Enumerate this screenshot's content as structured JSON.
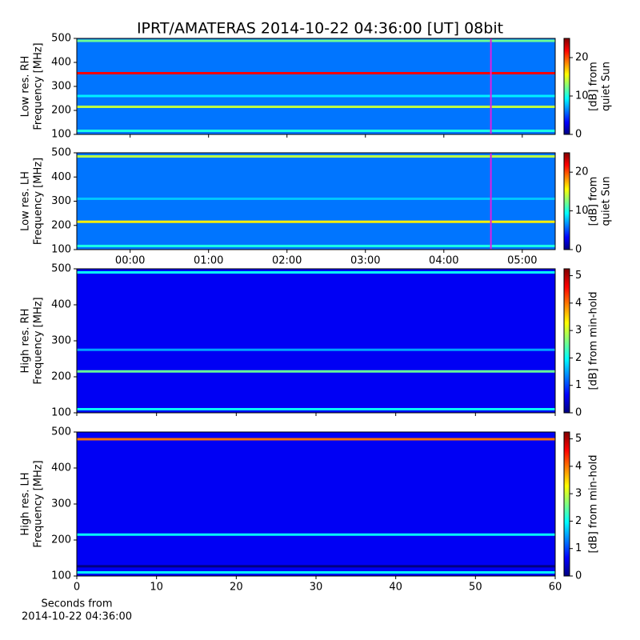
{
  "title": "IPRT/AMATERAS 2014-10-22 04:36:00 [UT]   08bit",
  "chart_data": [
    {
      "type": "spectrogram",
      "ylabel": [
        "Low res. RH",
        "Frequency [MHz]"
      ],
      "xlim": [
        -0.68,
        5.42
      ],
      "xticks": [
        {
          "value": 0,
          "label": "00:00"
        },
        {
          "value": 1,
          "label": "01:00"
        },
        {
          "value": 2,
          "label": "02:00"
        },
        {
          "value": 3,
          "label": "03:00"
        },
        {
          "value": 4,
          "label": "04:00"
        },
        {
          "value": 5,
          "label": "05:00"
        }
      ],
      "show_xtick_labels": false,
      "ylim": [
        100,
        500
      ],
      "yticks": [
        100,
        200,
        300,
        400,
        500
      ],
      "clim": [
        0,
        25
      ],
      "cticks": [
        0,
        10,
        20
      ],
      "clabel": [
        "[dB] from",
        "quiet Sun"
      ],
      "background": 6,
      "bands": [
        {
          "freq": 490,
          "level": 12
        },
        {
          "freq": 355,
          "level": 22
        },
        {
          "freq": 260,
          "level": 9
        },
        {
          "freq": 215,
          "level": 14
        },
        {
          "freq": 115,
          "level": 10
        }
      ],
      "marker_x": 4.6,
      "marker_color": "#e020e0"
    },
    {
      "type": "spectrogram",
      "ylabel": [
        "Low res. LH",
        "Frequency [MHz]"
      ],
      "xlim": [
        -0.68,
        5.42
      ],
      "xticks": [
        {
          "value": 0,
          "label": "00:00"
        },
        {
          "value": 1,
          "label": "01:00"
        },
        {
          "value": 2,
          "label": "02:00"
        },
        {
          "value": 3,
          "label": "03:00"
        },
        {
          "value": 4,
          "label": "04:00"
        },
        {
          "value": 5,
          "label": "05:00"
        }
      ],
      "show_xtick_labels": true,
      "ylim": [
        100,
        500
      ],
      "yticks": [
        100,
        200,
        300,
        400,
        500
      ],
      "clim": [
        0,
        25
      ],
      "cticks": [
        0,
        10,
        20
      ],
      "clabel": [
        "[dB] from",
        "quiet Sun"
      ],
      "background": 6,
      "bands": [
        {
          "freq": 485,
          "level": 14
        },
        {
          "freq": 310,
          "level": 8
        },
        {
          "freq": 215,
          "level": 16
        },
        {
          "freq": 115,
          "level": 10
        }
      ],
      "marker_x": 4.6,
      "marker_color": "#e020e0"
    },
    {
      "type": "spectrogram",
      "ylabel": [
        "High res. RH",
        "Frequency [MHz]"
      ],
      "xlim": [
        0,
        60
      ],
      "xticks": [
        0,
        10,
        20,
        30,
        40,
        50,
        60
      ],
      "show_xtick_labels": false,
      "ylim": [
        100,
        500
      ],
      "yticks": [
        100,
        200,
        300,
        400,
        500
      ],
      "clim": [
        0,
        5.25
      ],
      "cticks": [
        0,
        1,
        2,
        3,
        4,
        5
      ],
      "clabel": [
        "[dB] from min-hold"
      ],
      "background": 0.6,
      "bands": [
        {
          "freq": 490,
          "level": 2
        },
        {
          "freq": 275,
          "level": 1.5
        },
        {
          "freq": 215,
          "level": 2.5
        },
        {
          "freq": 110,
          "level": 2
        }
      ]
    },
    {
      "type": "spectrogram",
      "ylabel": [
        "High res. LH",
        "Frequency [MHz]"
      ],
      "xlim": [
        0,
        60
      ],
      "xticks": [
        0,
        10,
        20,
        30,
        40,
        50,
        60
      ],
      "show_xtick_labels": true,
      "xlabel": [
        "Seconds from",
        "2014-10-22 04:36:00"
      ],
      "ylim": [
        100,
        500
      ],
      "yticks": [
        100,
        200,
        300,
        400,
        500
      ],
      "clim": [
        0,
        5.25
      ],
      "cticks": [
        0,
        1,
        2,
        3,
        4,
        5
      ],
      "clabel": [
        "[dB] from min-hold"
      ],
      "background": 0.6,
      "bands": [
        {
          "freq": 480,
          "level": 4
        },
        {
          "freq": 215,
          "level": 2
        },
        {
          "freq": 127,
          "level": 0
        },
        {
          "freq": 110,
          "level": 2
        }
      ]
    }
  ]
}
